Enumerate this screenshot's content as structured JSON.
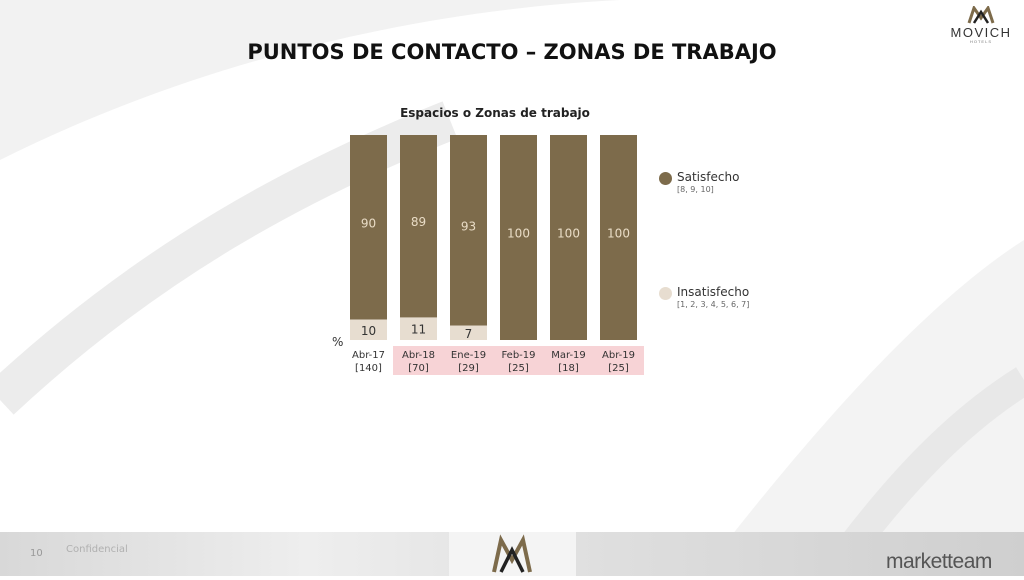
{
  "title": "PUNTOS DE CONTACTO – ZONAS DE TRABAJO",
  "brand": {
    "name": "MOVICH",
    "sub": "HOTELS"
  },
  "footer": {
    "page": "10",
    "confidential": "Confidencial",
    "agency": "marketteam"
  },
  "colors": {
    "satisfied": "#7d6b4b",
    "unsatisfied": "#e7ddd0",
    "highlight": "#f7d3d6"
  },
  "y_unit": "%",
  "chart_data": {
    "type": "bar",
    "stacked": true,
    "title": "Espacios o Zonas de trabajo",
    "categories": [
      "Abr-17",
      "Abr-18",
      "Ene-19",
      "Feb-19",
      "Mar-19",
      "Abr-19"
    ],
    "bases": [
      "[140]",
      "[70]",
      "[29]",
      "[25]",
      "[18]",
      "[25]"
    ],
    "highlighted": [
      false,
      true,
      true,
      true,
      true,
      true
    ],
    "ylim": [
      0,
      100
    ],
    "series": [
      {
        "name": "Insatisfecho",
        "range": "[1, 2, 3, 4, 5, 6, 7]",
        "values": [
          10,
          11,
          7,
          0,
          0,
          0
        ],
        "labels": [
          "10",
          "11",
          "7",
          "",
          "",
          ""
        ]
      },
      {
        "name": "Satisfecho",
        "range": "[8, 9, 10]",
        "values": [
          90,
          89,
          93,
          100,
          100,
          100
        ],
        "labels": [
          "90",
          "89",
          "93",
          "100",
          "100",
          "100"
        ]
      }
    ]
  }
}
